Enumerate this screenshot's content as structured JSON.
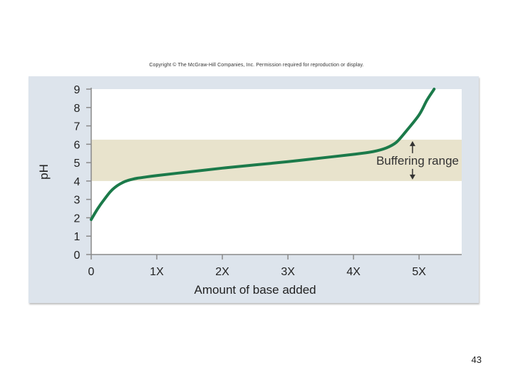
{
  "header": {
    "copyright": "Copyright © The McGraw-Hill Companies, Inc. Permission required for reproduction or display."
  },
  "footer": {
    "page_number": "43"
  },
  "chart_data": {
    "type": "line",
    "title": "",
    "xlabel": "Amount of base added",
    "ylabel": "pH",
    "x_ticks": [
      {
        "value": 0,
        "label": "0"
      },
      {
        "value": 1,
        "label": "1X"
      },
      {
        "value": 2,
        "label": "2X"
      },
      {
        "value": 3,
        "label": "3X"
      },
      {
        "value": 4,
        "label": "4X"
      },
      {
        "value": 5,
        "label": "5X"
      }
    ],
    "y_ticks": [
      0,
      1,
      2,
      3,
      4,
      5,
      6,
      7,
      8,
      9
    ],
    "xlim": [
      0,
      5.65
    ],
    "ylim": [
      0,
      9
    ],
    "grid": false,
    "series": [
      {
        "color": "#1b7a4a",
        "points": [
          [
            0,
            1.9
          ],
          [
            0.1,
            2.5
          ],
          [
            0.2,
            3.0
          ],
          [
            0.3,
            3.45
          ],
          [
            0.4,
            3.75
          ],
          [
            0.5,
            3.95
          ],
          [
            0.6,
            4.07
          ],
          [
            0.7,
            4.15
          ],
          [
            0.8,
            4.2
          ],
          [
            1.0,
            4.3
          ],
          [
            1.5,
            4.5
          ],
          [
            2.0,
            4.7
          ],
          [
            2.5,
            4.88
          ],
          [
            3.0,
            5.05
          ],
          [
            3.5,
            5.25
          ],
          [
            4.0,
            5.45
          ],
          [
            4.3,
            5.6
          ],
          [
            4.5,
            5.8
          ],
          [
            4.65,
            6.1
          ],
          [
            4.8,
            6.7
          ],
          [
            5.0,
            7.6
          ],
          [
            5.12,
            8.4
          ],
          [
            5.23,
            9.0
          ]
        ]
      }
    ],
    "annotations": [
      {
        "type": "band",
        "y_from": 4.0,
        "y_to": 6.25,
        "color": "#e8e3cc",
        "label": "Buffering range"
      }
    ]
  }
}
